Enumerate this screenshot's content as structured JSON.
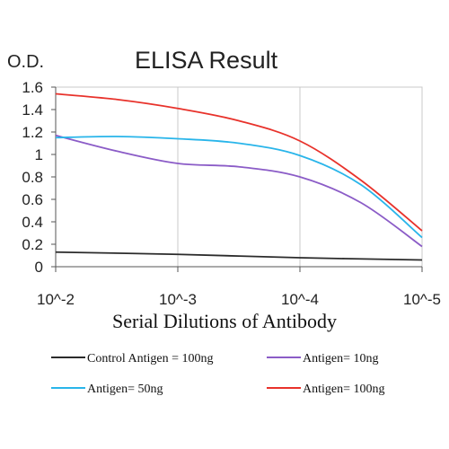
{
  "chart_data": {
    "type": "line",
    "title": "ELISA Result",
    "ylabel": "O.D.",
    "xlabel": "Serial Dilutions of Antibody",
    "x_ticks": [
      "10^-2",
      "10^-3",
      "10^-4",
      "10^-5"
    ],
    "y_ticks": [
      "0",
      "0.2",
      "0.4",
      "0.6",
      "0.8",
      "1",
      "1.2",
      "1.4",
      "1.6"
    ],
    "ylim": [
      0,
      1.6
    ],
    "grid": "vertical",
    "legend_position": "bottom",
    "series": [
      {
        "name": "Control Antigen = 100ng",
        "color": "#2b2b2b",
        "x": [
          0,
          1,
          2,
          3
        ],
        "values": [
          0.13,
          0.11,
          0.08,
          0.06
        ]
      },
      {
        "name": "Antigen= 10ng",
        "color": "#8b5cc7",
        "x": [
          0,
          0.5,
          1,
          1.5,
          2,
          2.5,
          3
        ],
        "values": [
          1.17,
          1.03,
          0.92,
          0.89,
          0.8,
          0.57,
          0.18
        ]
      },
      {
        "name": "Antigen= 50ng",
        "color": "#29b5ea",
        "x": [
          0,
          0.5,
          1,
          1.5,
          2,
          2.5,
          3
        ],
        "values": [
          1.15,
          1.16,
          1.14,
          1.1,
          0.99,
          0.73,
          0.26
        ]
      },
      {
        "name": "Antigen= 100ng",
        "color": "#e8322b",
        "x": [
          0,
          0.5,
          1,
          1.5,
          2,
          2.5,
          3
        ],
        "values": [
          1.54,
          1.49,
          1.41,
          1.3,
          1.12,
          0.77,
          0.32
        ]
      }
    ]
  }
}
